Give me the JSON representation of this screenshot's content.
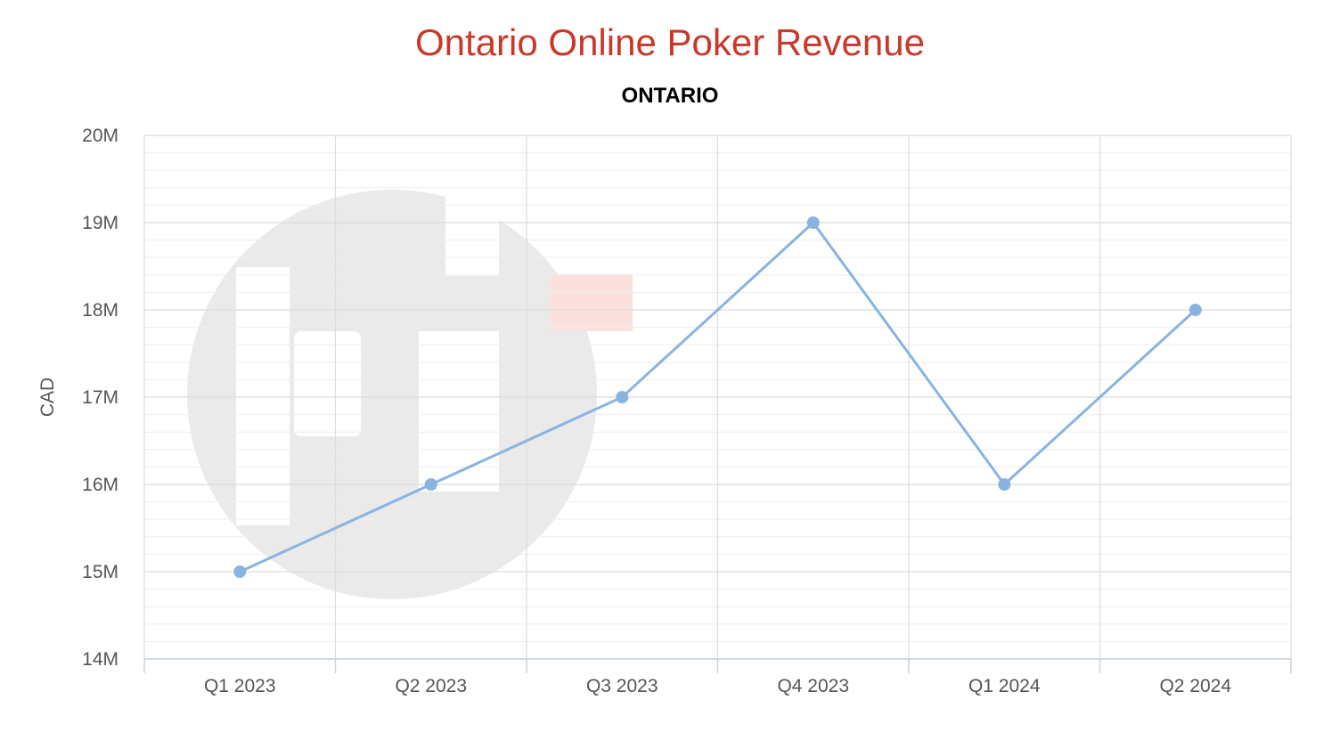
{
  "chart_data": {
    "type": "line",
    "title": "Ontario Online Poker Revenue",
    "subtitle": "ONTARIO",
    "xlabel": "",
    "ylabel": "CAD",
    "categories": [
      "Q1 2023",
      "Q2 2023",
      "Q3 2023",
      "Q4 2023",
      "Q1 2024",
      "Q2 2024"
    ],
    "series": [
      {
        "values": [
          15000000,
          16000000,
          17000000,
          19000000,
          16000000,
          18000000
        ],
        "color": "#8ab4e0"
      }
    ],
    "ylim": [
      14000000,
      20000000
    ],
    "yticks": [
      "14M",
      "15M",
      "16M",
      "17M",
      "18M",
      "19M",
      "20M"
    ],
    "grid": true,
    "legend": "none"
  }
}
